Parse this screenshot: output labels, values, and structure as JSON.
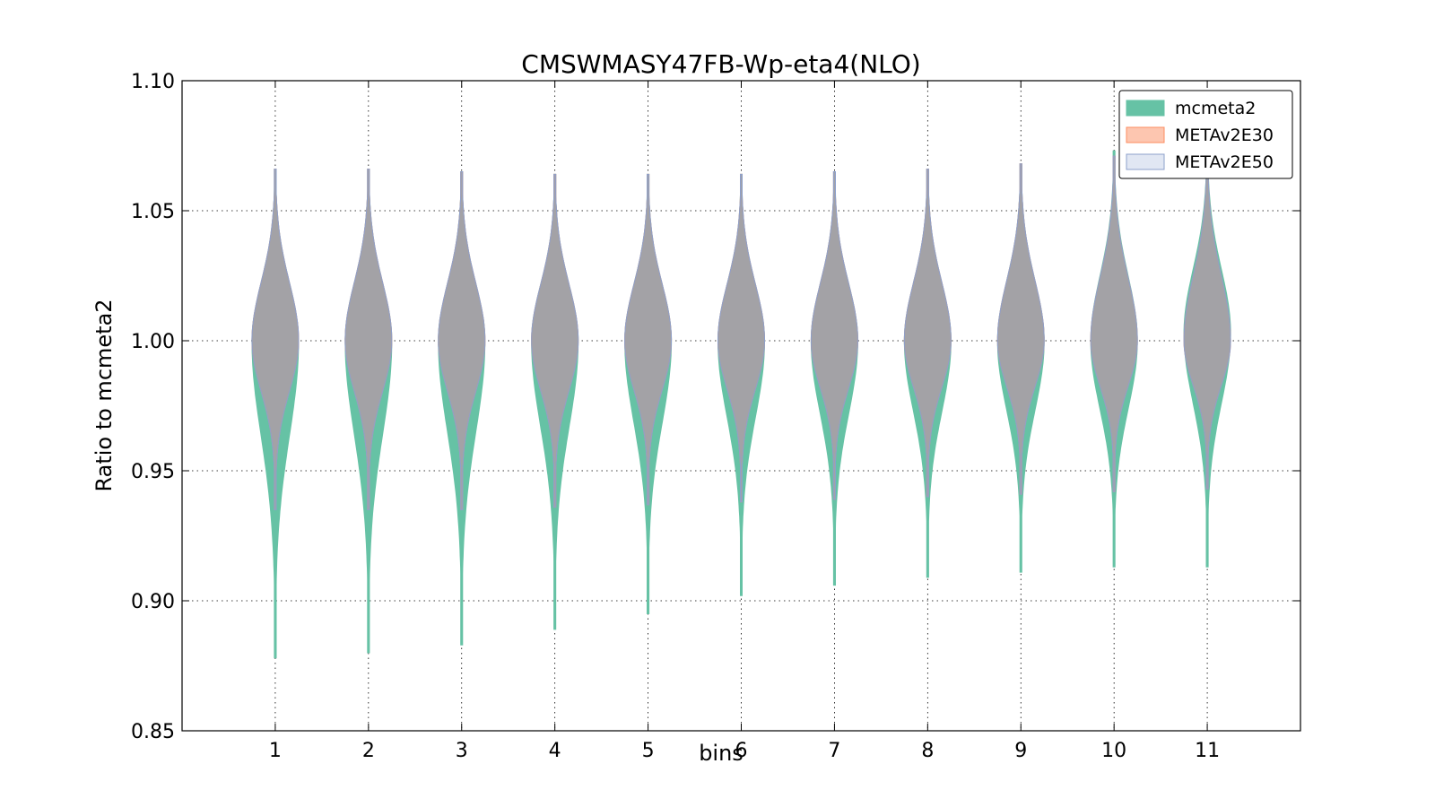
{
  "chart_data": {
    "type": "violin",
    "title": "CMSWMASY47FB-Wp-eta4(NLO)",
    "xlabel": "bins",
    "ylabel": "Ratio to mcmeta2",
    "ylim": [
      0.85,
      1.1
    ],
    "yticks": [
      "0.85",
      "0.90",
      "0.95",
      "1.00",
      "1.05",
      "1.10"
    ],
    "categories": [
      "1",
      "2",
      "3",
      "4",
      "5",
      "6",
      "7",
      "8",
      "9",
      "10",
      "11"
    ],
    "grid": true,
    "legend_position": "top-right",
    "series": [
      {
        "name": "mcmeta2",
        "color": "#66c2a5",
        "min": [
          0.878,
          0.88,
          0.883,
          0.889,
          0.895,
          0.902,
          0.906,
          0.909,
          0.911,
          0.913,
          0.913
        ],
        "max": [
          1.066,
          1.066,
          1.065,
          1.064,
          1.064,
          1.064,
          1.065,
          1.066,
          1.068,
          1.073,
          1.075
        ],
        "center": [
          1.0,
          1.0,
          1.0,
          1.0,
          1.0,
          1.0,
          1.0,
          1.0,
          1.0,
          1.0,
          1.003
        ]
      },
      {
        "name": "METAv2E30",
        "color": "#fc8d62",
        "min": [
          0.935,
          0.935,
          0.935,
          0.936,
          0.937,
          0.938,
          0.939,
          0.94,
          0.941,
          0.942,
          0.943
        ],
        "max": [
          1.066,
          1.066,
          1.065,
          1.064,
          1.064,
          1.064,
          1.065,
          1.066,
          1.068,
          1.071,
          1.073
        ],
        "center": [
          1.0,
          1.0,
          1.0,
          1.0,
          1.0,
          1.0,
          1.0,
          1.0,
          1.0,
          1.0,
          1.0
        ]
      },
      {
        "name": "METAv2E50",
        "color": "#8da0cb",
        "min": [
          0.935,
          0.935,
          0.935,
          0.936,
          0.937,
          0.938,
          0.939,
          0.94,
          0.941,
          0.942,
          0.943
        ],
        "max": [
          1.066,
          1.066,
          1.065,
          1.064,
          1.064,
          1.064,
          1.065,
          1.066,
          1.068,
          1.071,
          1.073
        ],
        "center": [
          1.0,
          1.0,
          1.0,
          1.0,
          1.0,
          1.0,
          1.0,
          1.0,
          1.0,
          1.0,
          1.0
        ]
      }
    ]
  }
}
